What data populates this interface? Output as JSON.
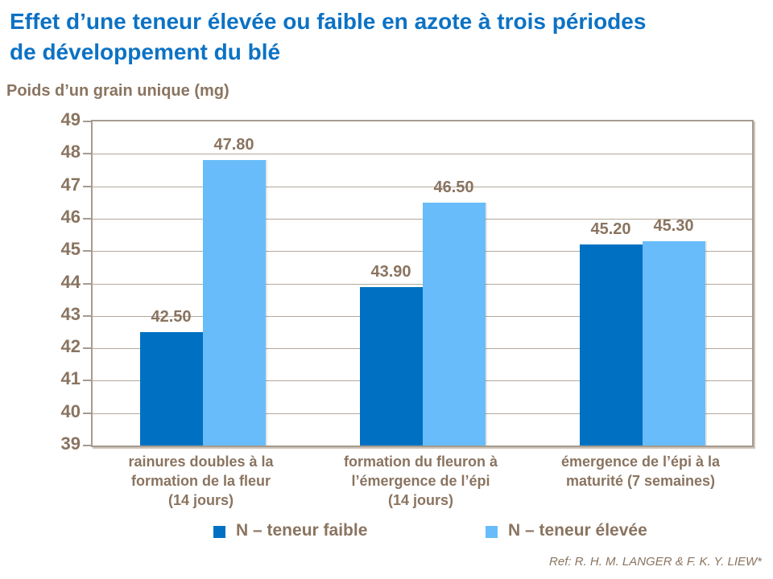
{
  "title": "Effet d’une teneur élevée ou faible en azote à trois périodes\nde développement du blé",
  "colors": {
    "title_blue": "#0c72c4",
    "text_brown": "#8a7460",
    "axis_border": "#a59b8e",
    "gridline": "#b3a99b",
    "bar_dark": "#0071c2",
    "bar_light": "#68bcf9"
  },
  "reference": "Ref: R. H. M. LANGER & F. K. Y. LIEW*",
  "chart_data": {
    "type": "bar",
    "title": "Effet d’une teneur élevée ou faible en azote à trois périodes de développement du blé",
    "ylabel": "Poids d’un grain unique (mg)",
    "xlabel": "",
    "ylim": [
      39,
      49
    ],
    "yticks": [
      39,
      40,
      41,
      42,
      43,
      44,
      45,
      46,
      47,
      48,
      49
    ],
    "grid": true,
    "legend_position": "bottom",
    "categories": [
      "rainures doubles à la\nformation de la fleur\n(14 jours)",
      "formation du fleuron à\nl’émergence de l’épi\n(14 jours)",
      "émergence de l’épi à la\nmaturité (7 semaines)"
    ],
    "series": [
      {
        "name": "N – teneur faible",
        "color_key": "bar_dark",
        "values": [
          42.5,
          43.9,
          45.2
        ],
        "labels": [
          "42.50",
          "43.90",
          "45.20"
        ]
      },
      {
        "name": "N – teneur élevée",
        "color_key": "bar_light",
        "values": [
          47.8,
          46.5,
          45.3
        ],
        "labels": [
          "47.80",
          "46.50",
          "45.30"
        ]
      }
    ]
  }
}
